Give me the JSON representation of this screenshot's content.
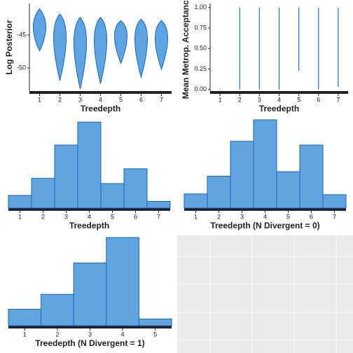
{
  "chart_data": [
    {
      "type": "violin",
      "xlabel": "Treedepth",
      "ylabel": "Log Posterior",
      "categories": [
        "1",
        "2",
        "3",
        "4",
        "5",
        "6",
        "7"
      ],
      "max": [
        -41.0,
        -41.8,
        -42.3,
        -42.3,
        -42.8,
        -42.6,
        -42.8
      ],
      "mode": [
        -43.4,
        -43.9,
        -44.5,
        -44.3,
        -44.3,
        -44.3,
        -44.5
      ],
      "min": [
        -47.4,
        -51.9,
        -53.2,
        -52.4,
        -49.3,
        -51.4,
        -50.2
      ],
      "ylim": [
        -53.5,
        -40.2
      ],
      "yticks": [
        -45,
        -50
      ],
      "color": "#5ea3e2"
    },
    {
      "type": "range",
      "xlabel": "Treedepth",
      "ylabel": "Mean Metrop. Acceptance",
      "categories": [
        "1",
        "2",
        "3",
        "4",
        "5",
        "6",
        "7"
      ],
      "min": [
        0,
        0,
        0,
        0,
        0.23,
        0,
        0.03
      ],
      "max": [
        0.01,
        1,
        1,
        1,
        1,
        1,
        1
      ],
      "ylim": [
        -0.02,
        1.05
      ],
      "yticks": [
        {
          "value": 0,
          "label": "0.00"
        },
        {
          "value": 0.25,
          "label": "0.25"
        },
        {
          "value": 0.5,
          "label": "0.50"
        },
        {
          "value": 0.75,
          "label": "0.75"
        },
        {
          "value": 1,
          "label": "1.00"
        }
      ],
      "color": "#1f6fc4"
    },
    {
      "type": "bar",
      "xlabel": "Treedepth",
      "categories": [
        "1",
        "2",
        "3",
        "4",
        "5",
        "6",
        "7"
      ],
      "values": [
        17,
        40,
        85,
        116,
        33,
        53,
        9
      ],
      "ylim": [
        0,
        120
      ],
      "color": "#62a4e0"
    },
    {
      "type": "bar",
      "xlabel": "Treedepth (N Divergent = 0)",
      "categories": [
        "1",
        "2",
        "3",
        "4",
        "5",
        "6",
        "7"
      ],
      "values": [
        19,
        43,
        90,
        119,
        49,
        85,
        18
      ],
      "ylim": [
        0,
        120
      ],
      "color": "#62a4e0"
    },
    {
      "type": "bar",
      "xlabel": "Treedepth (N Divergent = 1)",
      "categories": [
        "1",
        "2",
        "3",
        "4",
        "5"
      ],
      "values": [
        22,
        42,
        84,
        118,
        9
      ],
      "ylim": [
        0,
        120
      ],
      "color": "#62a4e0"
    }
  ]
}
